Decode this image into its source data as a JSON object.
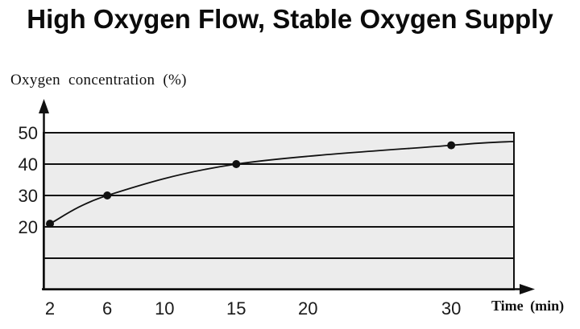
{
  "title": "High Oxygen Flow, Stable Oxygen Supply",
  "chart_data": {
    "type": "line",
    "title": "High Oxygen Flow, Stable Oxygen Supply",
    "xlabel": "Time (min)",
    "ylabel": "Oxygen concentration (%)",
    "x_ticks": [
      2,
      6,
      10,
      15,
      20,
      30
    ],
    "y_ticks": [
      50,
      40,
      30,
      20
    ],
    "y_gridlines": [
      40,
      30,
      20,
      10
    ],
    "xlim": [
      2,
      34.4
    ],
    "ylim": [
      0,
      50
    ],
    "grid": "horizontal",
    "legend": "none",
    "series": [
      {
        "name": "oxygen-concentration",
        "points": [
          {
            "x": 2,
            "y": 21
          },
          {
            "x": 6,
            "y": 30
          },
          {
            "x": 15,
            "y": 40
          },
          {
            "x": 30,
            "y": 46
          }
        ],
        "curve_end": {
          "x": 34.4,
          "y": 47.2
        }
      }
    ],
    "colors": {
      "plot_background": "#ececec",
      "line": "#111111",
      "marker": "#111111",
      "axis": "#111111",
      "page_background": "#ffffff"
    }
  }
}
